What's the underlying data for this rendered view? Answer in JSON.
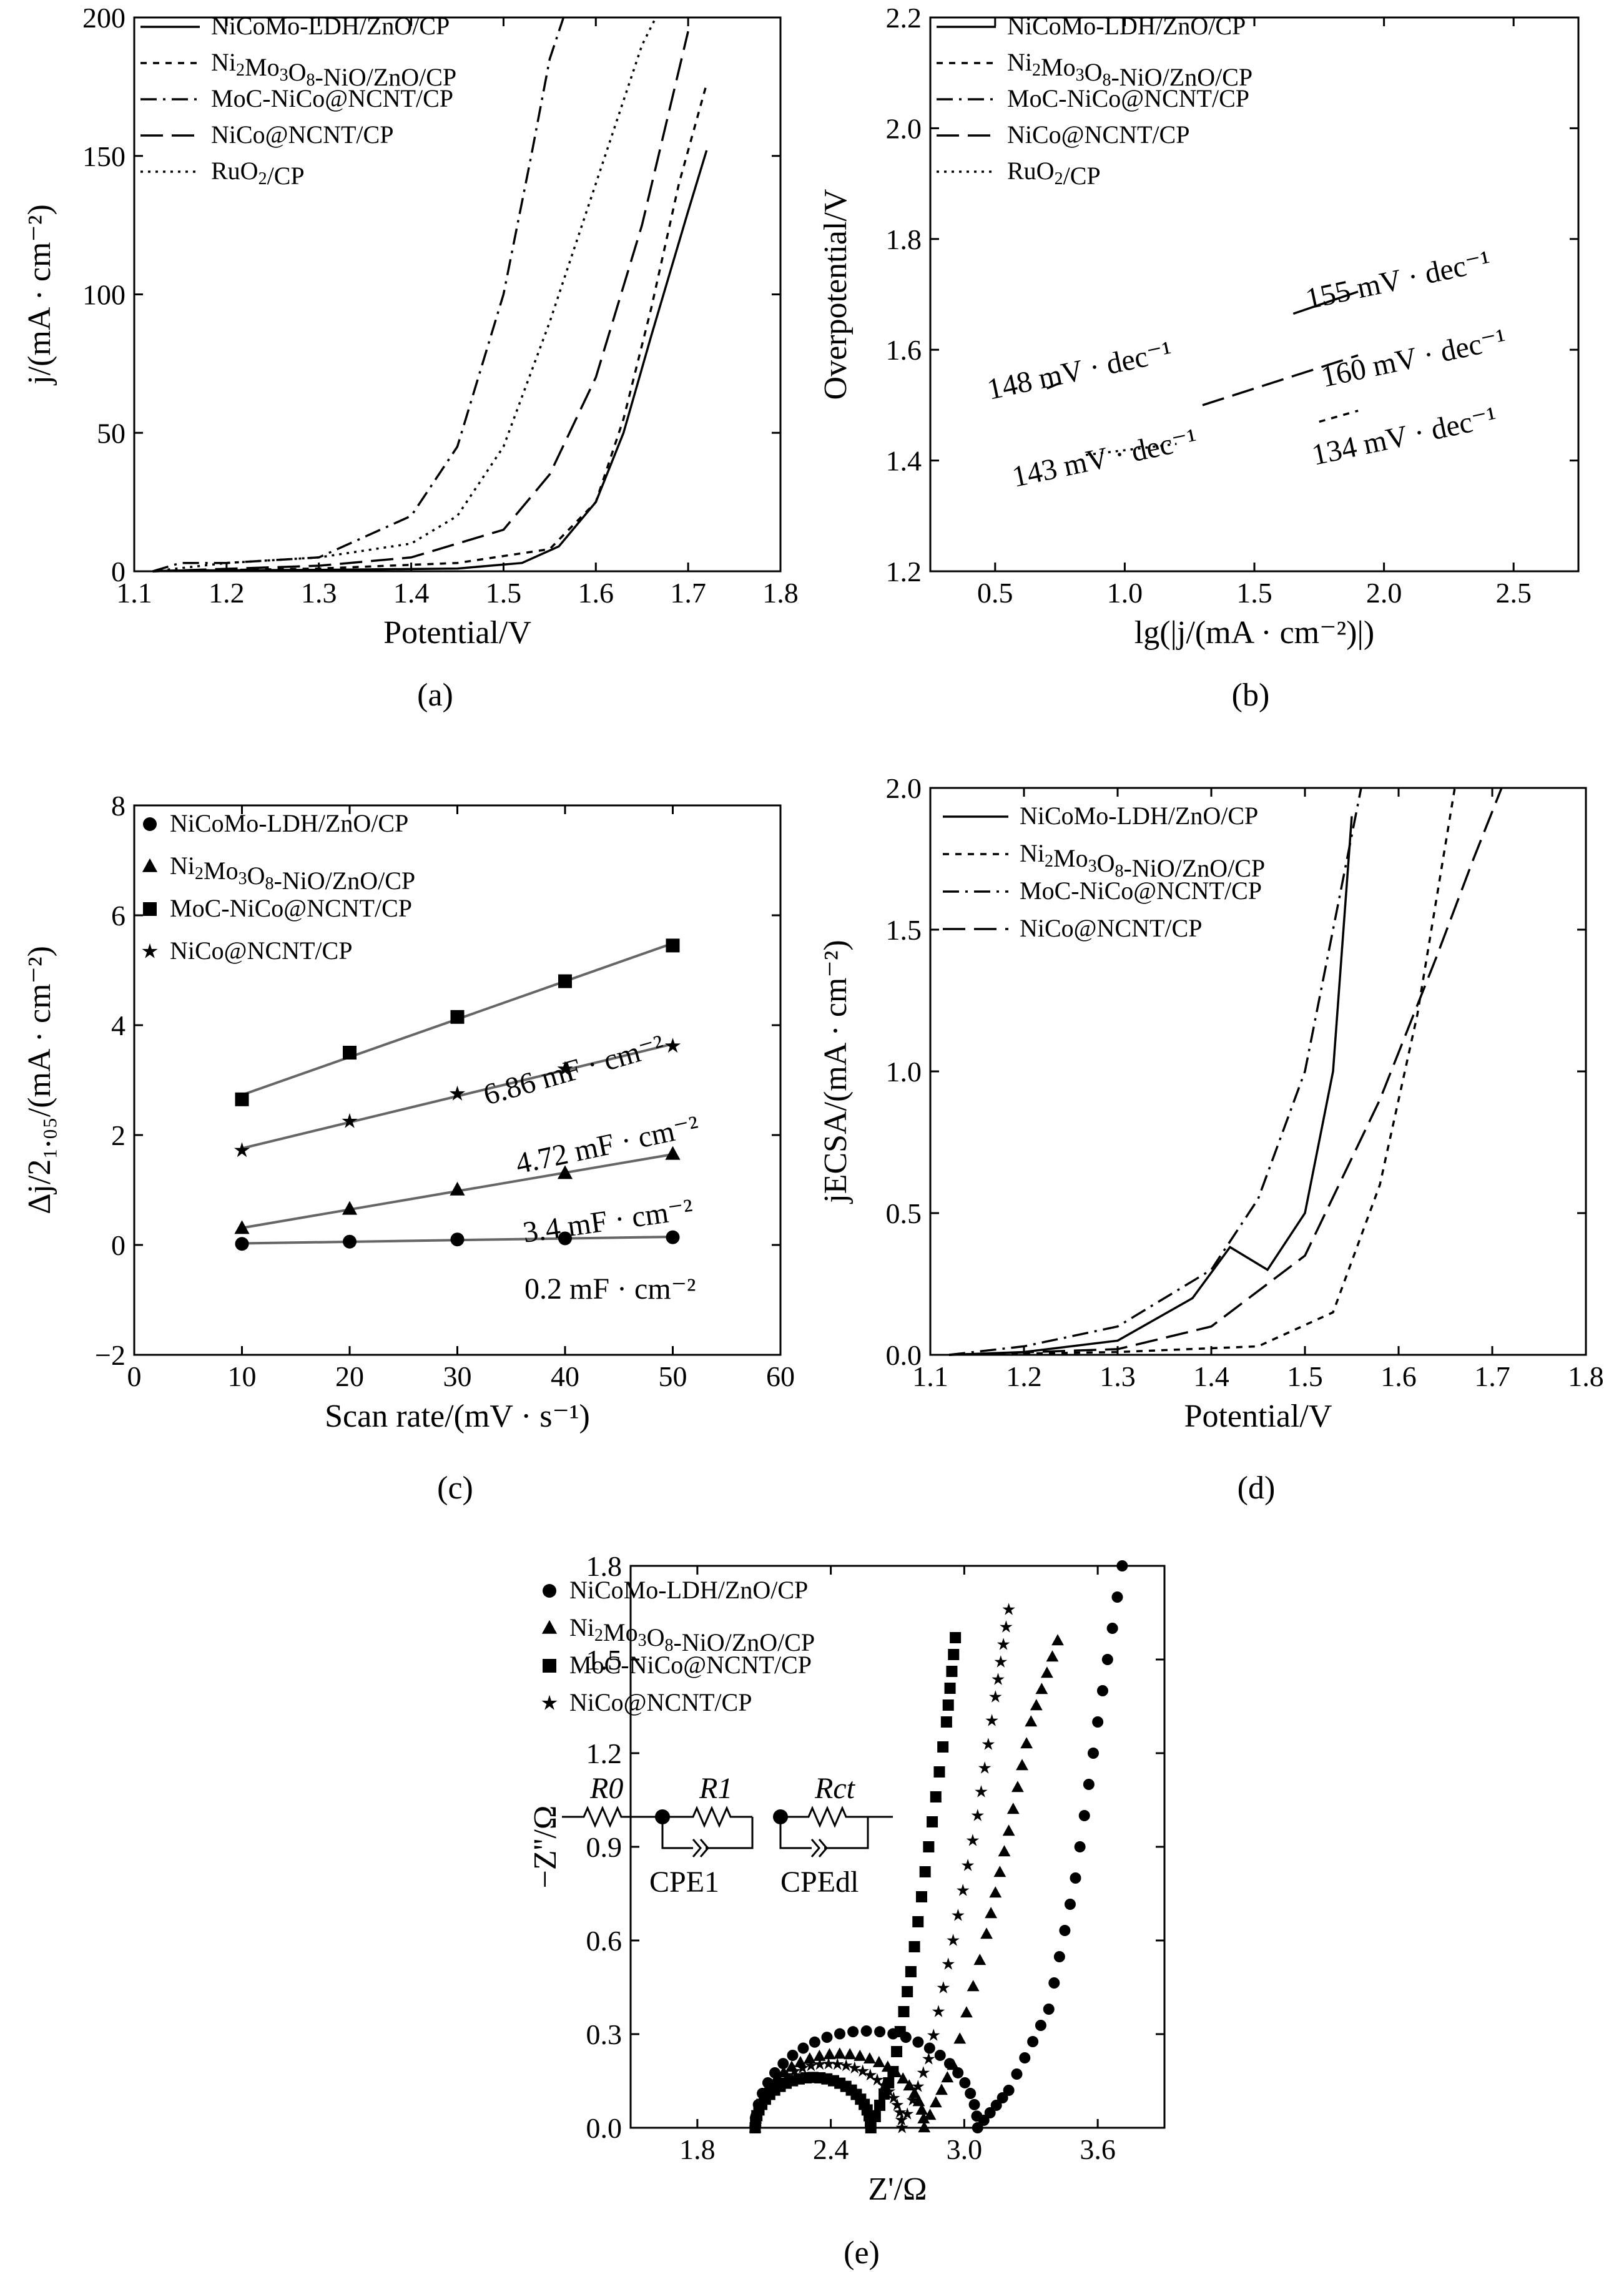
{
  "figure": {
    "captions": [
      "(a)",
      "(b)",
      "(c)",
      "(d)",
      "(e)"
    ]
  },
  "colors": {
    "ink": "#000000",
    "fit_line": "#666666",
    "background": "#ffffff"
  },
  "series_names": [
    "NiCoMo-LDH/ZnO/CP",
    "Ni2Mo3O8-NiO/ZnO/CP",
    "MoC-NiCo@NCNT/CP",
    "NiCo@NCNT/CP",
    "RuO2/CP"
  ],
  "chart_data": [
    {
      "id": "a",
      "type": "line",
      "caption": "(a)",
      "xlabel": "Potential/V",
      "ylabel": "j/(mA · cm⁻²)",
      "xlim": [
        1.1,
        1.8
      ],
      "ylim": [
        0,
        200
      ],
      "xticks": [
        1.1,
        1.2,
        1.3,
        1.4,
        1.5,
        1.6,
        1.7,
        1.8
      ],
      "yticks": [
        0,
        50,
        100,
        150,
        200
      ],
      "series": [
        {
          "name": "NiCoMo-LDH/ZnO/CP",
          "style": "solid",
          "x": [
            1.12,
            1.15,
            1.3,
            1.45,
            1.52,
            1.56,
            1.6,
            1.63,
            1.66,
            1.7,
            1.72
          ],
          "y": [
            0,
            0.3,
            0.5,
            1,
            3,
            9,
            25,
            50,
            85,
            130,
            152
          ]
        },
        {
          "name": "Ni2Mo3O8-NiO/ZnO/CP",
          "style": "dashdotdot",
          "x": [
            1.12,
            1.3,
            1.45,
            1.55,
            1.6,
            1.63,
            1.66,
            1.69,
            1.72
          ],
          "y": [
            0,
            1,
            3,
            8,
            25,
            55,
            95,
            140,
            176
          ]
        },
        {
          "name": "MoC-NiCo@NCNT/CP",
          "style": "dashdot",
          "x": [
            1.12,
            1.15,
            1.2,
            1.3,
            1.4,
            1.45,
            1.5,
            1.53,
            1.55,
            1.565
          ],
          "y": [
            0,
            3,
            3,
            5,
            20,
            45,
            100,
            150,
            185,
            200
          ]
        },
        {
          "name": "NiCo@NCNT/CP",
          "style": "longdash",
          "x": [
            1.12,
            1.3,
            1.4,
            1.5,
            1.55,
            1.6,
            1.65,
            1.7
          ],
          "y": [
            0,
            2,
            5,
            15,
            35,
            70,
            125,
            195
          ]
        },
        {
          "name": "RuO2/CP",
          "style": "dotted",
          "x": [
            1.12,
            1.2,
            1.3,
            1.4,
            1.45,
            1.5,
            1.55,
            1.6,
            1.65,
            1.665
          ],
          "y": [
            0,
            3,
            5,
            10,
            20,
            45,
            90,
            140,
            190,
            200
          ]
        }
      ]
    },
    {
      "id": "b",
      "type": "line",
      "caption": "(b)",
      "xlabel": "lg(|j/(mA · cm⁻²)|)",
      "ylabel": "Overpotential/V",
      "xlim": [
        0.25,
        2.75
      ],
      "ylim": [
        1.2,
        2.2
      ],
      "xticks": [
        0.5,
        1.0,
        1.5,
        2.0,
        2.5
      ],
      "yticks": [
        1.2,
        1.4,
        1.6,
        1.8,
        2.0,
        2.2
      ],
      "series": [
        {
          "name": "NiCoMo-LDH/ZnO/CP",
          "style": "solid",
          "x": [
            1.65,
            1.9
          ],
          "y": [
            1.665,
            1.705
          ]
        },
        {
          "name": "Ni2Mo3O8-NiO/ZnO/CP",
          "style": "dashdotdot",
          "x": [
            1.75,
            1.9
          ],
          "y": [
            1.47,
            1.49
          ]
        },
        {
          "name": "MoC-NiCo@NCNT/CP",
          "style": "dashdot",
          "x": [
            0.7,
            0.75
          ],
          "y": [
            1.53,
            1.54
          ]
        },
        {
          "name": "NiCo@NCNT/CP",
          "style": "longdash",
          "x": [
            1.3,
            1.9
          ],
          "y": [
            1.5,
            1.59
          ]
        },
        {
          "name": "RuO2/CP",
          "style": "dotted",
          "x": [
            0.85,
            1.2
          ],
          "y": [
            1.41,
            1.43
          ]
        }
      ],
      "annotations": [
        "148 mV · dec⁻¹",
        "143 mV · dec⁻¹",
        "155 mV · dec⁻¹",
        "160 mV · dec⁻¹",
        "134 mV · dec⁻¹"
      ]
    },
    {
      "id": "c",
      "type": "scatter",
      "caption": "(c)",
      "xlabel": "Scan rate/(mV · s⁻¹)",
      "ylabel": "Δj/2₁.₀₅/(mA · cm⁻²)",
      "xlim": [
        0,
        60
      ],
      "ylim": [
        -2,
        8
      ],
      "xticks": [
        0,
        10,
        20,
        30,
        40,
        50,
        60
      ],
      "yticks": [
        -2,
        0,
        2,
        4,
        6,
        8
      ],
      "series": [
        {
          "name": "NiCoMo-LDH/ZnO/CP",
          "marker": "circle",
          "x": [
            10,
            20,
            30,
            40,
            50
          ],
          "y": [
            0.02,
            0.06,
            0.1,
            0.12,
            0.14
          ]
        },
        {
          "name": "Ni2Mo3O8-NiO/ZnO/CP",
          "marker": "triangle",
          "x": [
            10,
            20,
            30,
            40,
            50
          ],
          "y": [
            0.3,
            0.65,
            1.0,
            1.3,
            1.65
          ]
        },
        {
          "name": "MoC-NiCo@NCNT/CP",
          "marker": "square",
          "x": [
            10,
            20,
            30,
            40,
            50
          ],
          "y": [
            2.65,
            3.5,
            4.15,
            4.8,
            5.45
          ]
        },
        {
          "name": "NiCo@NCNT/CP",
          "marker": "star",
          "x": [
            10,
            20,
            30,
            40,
            50
          ],
          "y": [
            1.72,
            2.25,
            2.75,
            3.2,
            3.62
          ]
        }
      ],
      "annotations": [
        "6.86 mF · cm⁻²",
        "4.72 mF · cm⁻²",
        "3.4 mF · cm⁻²",
        "0.2 mF · cm⁻²"
      ]
    },
    {
      "id": "d",
      "type": "line",
      "caption": "(d)",
      "xlabel": "Potential/V",
      "ylabel": "jECSA/(mA · cm⁻²)",
      "xlim": [
        1.1,
        1.8
      ],
      "ylim": [
        0,
        2.0
      ],
      "xticks": [
        1.1,
        1.2,
        1.3,
        1.4,
        1.5,
        1.6,
        1.7,
        1.8
      ],
      "yticks": [
        0,
        0.5,
        1.0,
        1.5,
        2.0
      ],
      "series": [
        {
          "name": "NiCoMo-LDH/ZnO/CP",
          "style": "solid",
          "x": [
            1.12,
            1.2,
            1.3,
            1.38,
            1.42,
            1.46,
            1.5,
            1.53,
            1.55
          ],
          "y": [
            0,
            0.01,
            0.05,
            0.2,
            0.38,
            0.3,
            0.5,
            1.0,
            1.9
          ]
        },
        {
          "name": "Ni2Mo3O8-NiO/ZnO/CP",
          "style": "dashdotdot",
          "x": [
            1.12,
            1.3,
            1.45,
            1.53,
            1.58,
            1.62,
            1.65,
            1.66
          ],
          "y": [
            0,
            0.01,
            0.03,
            0.15,
            0.6,
            1.2,
            1.8,
            2.0
          ]
        },
        {
          "name": "MoC-NiCo@NCNT/CP",
          "style": "dashdot",
          "x": [
            1.12,
            1.2,
            1.3,
            1.4,
            1.45,
            1.5,
            1.53,
            1.56
          ],
          "y": [
            0,
            0.03,
            0.1,
            0.3,
            0.55,
            1.0,
            1.5,
            2.0
          ]
        },
        {
          "name": "NiCo@NCNT/CP",
          "style": "longdash",
          "x": [
            1.12,
            1.3,
            1.4,
            1.5,
            1.58,
            1.64,
            1.68,
            1.71
          ],
          "y": [
            0,
            0.02,
            0.1,
            0.35,
            0.9,
            1.4,
            1.75,
            2.0
          ]
        }
      ]
    },
    {
      "id": "e",
      "type": "scatter",
      "caption": "(e)",
      "xlabel": "Z'/Ω",
      "ylabel": "−Z''/Ω",
      "xlim": [
        1.5,
        3.9
      ],
      "ylim": [
        0,
        1.8
      ],
      "xticks": [
        1.8,
        2.4,
        3.0,
        3.6
      ],
      "yticks": [
        0,
        0.3,
        0.6,
        0.9,
        1.2,
        1.5,
        1.8
      ],
      "series": [
        {
          "name": "NiCoMo-LDH/ZnO/CP",
          "marker": "circle",
          "arc": [
            2.06,
            3.06
          ],
          "tail": [
            [
              3.06,
              0
            ],
            [
              3.2,
              0.12
            ],
            [
              3.38,
              0.38
            ],
            [
              3.5,
              0.8
            ],
            [
              3.6,
              1.3
            ],
            [
              3.71,
              1.8
            ]
          ]
        },
        {
          "name": "Ni2Mo3O8-NiO/ZnO/CP",
          "marker": "triangle",
          "arc": [
            2.06,
            2.82
          ],
          "tail": [
            [
              2.82,
              0
            ],
            [
              2.95,
              0.2
            ],
            [
              3.1,
              0.62
            ],
            [
              3.2,
              0.95
            ],
            [
              3.3,
              1.3
            ],
            [
              3.42,
              1.56
            ]
          ]
        },
        {
          "name": "MoC-NiCo@NCNT/CP",
          "marker": "square",
          "arc": [
            2.06,
            2.58
          ],
          "tail": [
            [
              2.58,
              0
            ],
            [
              2.68,
              0.18
            ],
            [
              2.76,
              0.5
            ],
            [
              2.84,
              0.9
            ],
            [
              2.92,
              1.3
            ],
            [
              2.96,
              1.57
            ]
          ]
        },
        {
          "name": "NiCo@NCNT/CP",
          "marker": "star",
          "arc": [
            2.06,
            2.72
          ],
          "tail": [
            [
              2.72,
              0
            ],
            [
              2.84,
              0.22
            ],
            [
              2.95,
              0.6
            ],
            [
              3.06,
              1.0
            ],
            [
              3.14,
              1.38
            ],
            [
              3.2,
              1.66
            ]
          ]
        }
      ],
      "inset": {
        "labels": [
          "R0",
          "R1",
          "Rct",
          "CPE1",
          "CPEdl"
        ]
      }
    }
  ]
}
